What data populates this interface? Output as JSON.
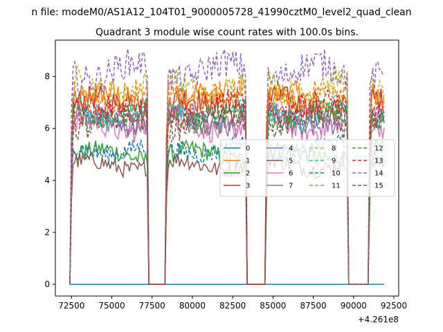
{
  "chart_data": {
    "type": "line",
    "suptitle": "n file: modeM0/AS1A12_104T01_9000005728_41990cztM0_level2_quad_clean",
    "title": "Quadrant 3 module wise count rates with 100.0s bins.",
    "xlabel": "",
    "ylabel": "",
    "x_offset_label": "+4.261e8",
    "xlim": [
      71500,
      92800
    ],
    "ylim": [
      -0.45,
      9.4
    ],
    "x_ticks": [
      72500,
      75000,
      77500,
      80000,
      82500,
      85000,
      87500,
      90000,
      92500
    ],
    "x_tick_labels": [
      "72500",
      "75000",
      "77500",
      "80000",
      "82500",
      "85000",
      "87500",
      "90000",
      "92500"
    ],
    "y_ticks": [
      0,
      2,
      4,
      6,
      8
    ],
    "y_tick_labels": [
      "0",
      "2",
      "4",
      "6",
      "8"
    ],
    "legend_location": "center-right",
    "active_segments": [
      [
        72500,
        77200
      ],
      [
        78400,
        83300
      ],
      [
        84600,
        89600
      ],
      [
        91000,
        91900
      ]
    ],
    "series": [
      {
        "name": "0",
        "color": "#1f77b4",
        "dash": "solid",
        "level": 0.0
      },
      {
        "name": "1",
        "color": "#ff7f0e",
        "dash": "solid",
        "level": 7.1
      },
      {
        "name": "2",
        "color": "#2ca02c",
        "dash": "solid",
        "level": 5.0
      },
      {
        "name": "3",
        "color": "#d62728",
        "dash": "solid",
        "level": 6.9
      },
      {
        "name": "4",
        "color": "#9467bd",
        "dash": "solid",
        "level": 6.3
      },
      {
        "name": "5",
        "color": "#8c564b",
        "dash": "solid",
        "level": 4.6
      },
      {
        "name": "6",
        "color": "#e377c2",
        "dash": "solid",
        "level": 6.1
      },
      {
        "name": "7",
        "color": "#7f7f7f",
        "dash": "solid",
        "level": 6.4
      },
      {
        "name": "8",
        "color": "#bcbd22",
        "dash": "dashed",
        "level": 7.6
      },
      {
        "name": "9",
        "color": "#17becf",
        "dash": "dashed",
        "level": 6.6
      },
      {
        "name": "10",
        "color": "#1f77b4",
        "dash": "dashed",
        "level": 5.2
      },
      {
        "name": "11",
        "color": "#ff7f0e",
        "dash": "dashed",
        "level": 7.3
      },
      {
        "name": "12",
        "color": "#2ca02c",
        "dash": "dashed",
        "level": 6.5
      },
      {
        "name": "13",
        "color": "#d62728",
        "dash": "dashed",
        "level": 6.8
      },
      {
        "name": "14",
        "color": "#9467bd",
        "dash": "dashed",
        "level": 8.2
      },
      {
        "name": "15",
        "color": "#8c564b",
        "dash": "dashed",
        "level": 6.2
      }
    ]
  }
}
